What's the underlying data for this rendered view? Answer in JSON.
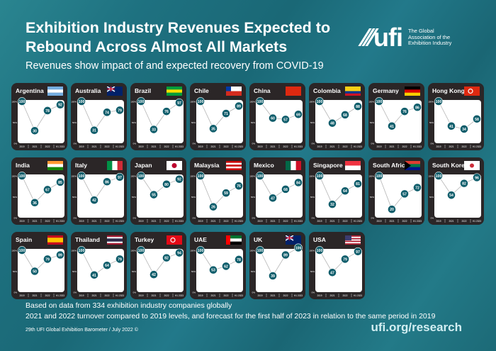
{
  "header": {
    "title": "Exhibition Industry Revenues Expected to Rebound Across Almost All Markets",
    "subtitle": "Revenues show impact of and expected recovery from COVID-19"
  },
  "logo": {
    "mark": "ufi",
    "tagline": [
      "The Global",
      "Association of the",
      "Exhibition Industry"
    ]
  },
  "colors": {
    "marker": "#0f5d6b",
    "card": "#2b2627",
    "line": "#b5b5b5"
  },
  "chart_data": {
    "type": "line",
    "small_multiples": true,
    "categories": [
      "2019",
      "2021",
      "2022",
      "H1 2023"
    ],
    "y_ticks": [
      "100%",
      "50%",
      "0%"
    ],
    "ylim": [
      0,
      100
    ],
    "grid": false,
    "panels": [
      {
        "name": "Argentina",
        "values": [
          100,
          30,
          78,
          92
        ],
        "flag": [
          "#74acdf",
          "#ffffff",
          "#74acdf"
        ]
      },
      {
        "name": "Australia",
        "values": [
          100,
          31,
          74,
          79
        ],
        "flag": [
          "#012169",
          "#012169",
          "#012169"
        ]
      },
      {
        "name": "Brazil",
        "values": [
          100,
          33,
          76,
          97
        ],
        "flag": [
          "#009c3b",
          "#ffdf00",
          "#009c3b"
        ]
      },
      {
        "name": "Chile",
        "values": [
          100,
          35,
          71,
          89
        ],
        "flag": [
          "#ffffff",
          "#d52b1e"
        ]
      },
      {
        "name": "China",
        "values": [
          100,
          60,
          57,
          69
        ],
        "flag": [
          "#de2910"
        ]
      },
      {
        "name": "Colombia",
        "values": [
          100,
          48,
          68,
          88
        ],
        "flag": [
          "#fcd116",
          "#fcd116",
          "#003893",
          "#ce1126"
        ]
      },
      {
        "name": "Germany",
        "values": [
          100,
          41,
          76,
          86
        ],
        "flag": [
          "#000000",
          "#dd0000",
          "#ffce00"
        ]
      },
      {
        "name": "Hong Kong",
        "values": [
          100,
          41,
          34,
          58
        ],
        "flag": [
          "#de2910"
        ]
      },
      {
        "name": "India",
        "values": [
          100,
          36,
          67,
          85
        ],
        "flag": [
          "#ff9933",
          "#ffffff",
          "#138808"
        ]
      },
      {
        "name": "Italy",
        "values": [
          100,
          42,
          86,
          97
        ],
        "flag_v": [
          "#009246",
          "#ffffff",
          "#ce2b37"
        ]
      },
      {
        "name": "Japan",
        "values": [
          100,
          55,
          80,
          92
        ],
        "flag": [
          "#ffffff"
        ]
      },
      {
        "name": "Malaysia",
        "values": [
          100,
          26,
          59,
          76
        ],
        "flag": [
          "#cc0001",
          "#ffffff",
          "#cc0001",
          "#ffffff",
          "#cc0001"
        ]
      },
      {
        "name": "Mexico",
        "values": [
          100,
          47,
          68,
          84
        ],
        "flag_v": [
          "#006847",
          "#ffffff",
          "#ce1126"
        ]
      },
      {
        "name": "Singapore",
        "values": [
          100,
          32,
          64,
          81
        ],
        "flag": [
          "#ef3340",
          "#ffffff"
        ]
      },
      {
        "name": "South Africa",
        "values": [
          100,
          20,
          57,
          72
        ],
        "flag": [
          "#e03c31",
          "#007749",
          "#001489"
        ]
      },
      {
        "name": "South Korea",
        "values": [
          100,
          54,
          82,
          96
        ],
        "flag": [
          "#ffffff"
        ]
      },
      {
        "name": "Spain",
        "values": [
          100,
          50,
          79,
          89
        ],
        "flag": [
          "#c60b1e",
          "#ffc400",
          "#ffc400",
          "#c60b1e"
        ]
      },
      {
        "name": "Thailand",
        "values": [
          100,
          41,
          64,
          79
        ],
        "flag": [
          "#a51931",
          "#f4f5f8",
          "#2d2a4a",
          "#2d2a4a",
          "#f4f5f8",
          "#a51931"
        ]
      },
      {
        "name": "Turkey",
        "values": [
          100,
          42,
          82,
          94
        ],
        "flag": [
          "#e30a17"
        ]
      },
      {
        "name": "UAE",
        "values": [
          100,
          53,
          62,
          78
        ],
        "flag": [
          "#00732f",
          "#ffffff",
          "#000000"
        ]
      },
      {
        "name": "UK",
        "values": [
          100,
          39,
          89,
          106
        ],
        "flag": [
          "#012169"
        ]
      },
      {
        "name": "USA",
        "values": [
          100,
          47,
          79,
          97
        ],
        "flag": [
          "#b22234",
          "#ffffff",
          "#b22234",
          "#ffffff",
          "#b22234",
          "#ffffff",
          "#b22234"
        ]
      }
    ]
  },
  "footer": {
    "note1": "Based on data from 334 exhibition industry companies globally",
    "note2": "2021 and 2022 turnover compared to 2019 levels, and forecast for the first half of 2023 in relation to the same period in 2019",
    "credit": "29th UFI Global Exhibition Barometer / July 2022 ©",
    "url": "ufi.org/research"
  }
}
